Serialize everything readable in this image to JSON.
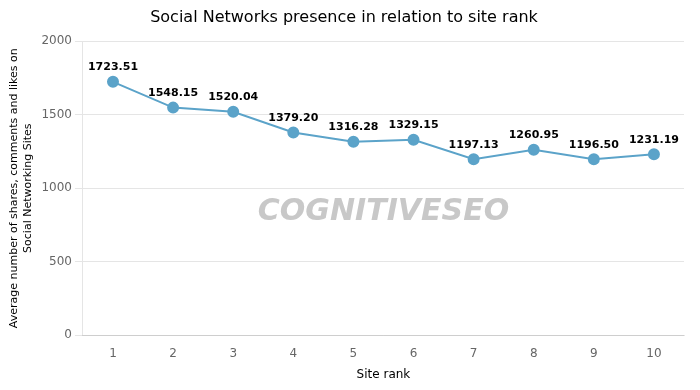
{
  "chart_data": {
    "type": "line",
    "title": "Social Networks presence in relation to site rank",
    "xlabel": "Site rank",
    "ylabel": "Average number of shares, comments and likes on\nSocial Networking Sites",
    "x": [
      1,
      2,
      3,
      4,
      5,
      6,
      7,
      8,
      9,
      10
    ],
    "values": [
      1723.51,
      1548.15,
      1520.04,
      1379.2,
      1316.28,
      1329.15,
      1197.13,
      1260.95,
      1196.5,
      1231.19
    ],
    "value_labels": [
      "1723.51",
      "1548.15",
      "1520.04",
      "1379.20",
      "1316.28",
      "1329.15",
      "1197.13",
      "1260.95",
      "1196.50",
      "1231.19"
    ],
    "data_labels": true,
    "color": "#5BA3C9",
    "marker": "circle",
    "annotations": [
      "COGNITIVESEO"
    ],
    "xlim": [
      0.5,
      10.5
    ],
    "xticks": [
      1,
      2,
      3,
      4,
      5,
      6,
      7,
      8,
      9,
      10
    ],
    "ylim": [
      0,
      2000
    ],
    "yticks": [
      0,
      500,
      1000,
      1500,
      2000
    ],
    "grid": true
  }
}
